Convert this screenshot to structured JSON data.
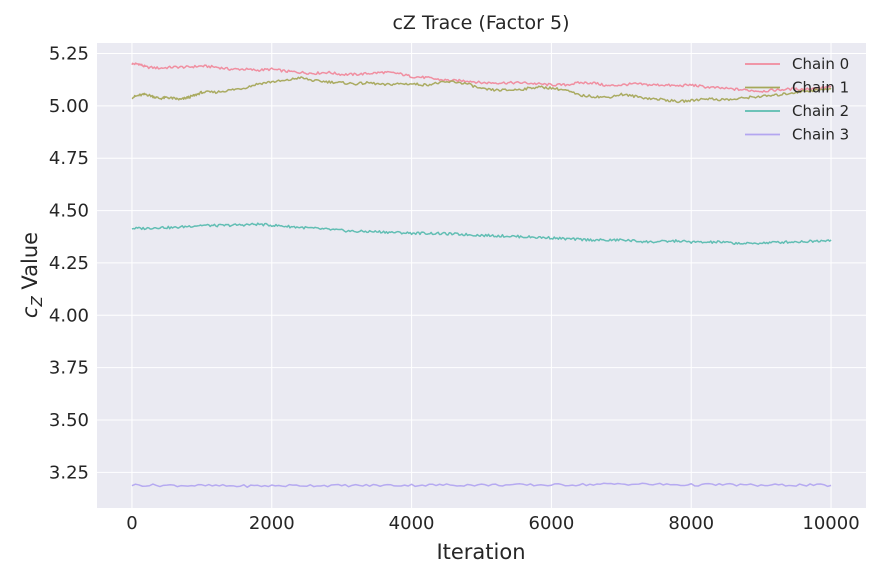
{
  "chart_data": {
    "type": "line",
    "title": "cZ Trace (Factor 5)",
    "xlabel": "Iteration",
    "ylabel_symbol": "c",
    "ylabel_subscript": "Z",
    "ylabel_text": " Value",
    "xlim": [
      -500,
      10500
    ],
    "ylim": [
      3.08,
      5.3
    ],
    "xticks": [
      0,
      2000,
      4000,
      6000,
      8000,
      10000
    ],
    "yticks": [
      3.25,
      3.5,
      3.75,
      4.0,
      4.25,
      4.5,
      4.75,
      5.0,
      5.25
    ],
    "grid": true,
    "legend_position": "top-right",
    "background_color": "#eaeaf2",
    "series": [
      {
        "name": "Chain 0",
        "color": "#f08a9c",
        "x": [
          0,
          100,
          200,
          400,
          600,
          800,
          1000,
          1200,
          1400,
          1600,
          1800,
          2000,
          2200,
          2400,
          2600,
          2800,
          3000,
          3200,
          3400,
          3600,
          3800,
          4000,
          4200,
          4400,
          4600,
          4800,
          5000,
          5200,
          5400,
          5600,
          5800,
          6000,
          6200,
          6400,
          6600,
          6800,
          7000,
          7200,
          7400,
          7600,
          7800,
          8000,
          8200,
          8400,
          8600,
          8800,
          9000,
          9200,
          9400,
          9600,
          9800,
          10000
        ],
        "values": [
          5.2,
          5.2,
          5.185,
          5.18,
          5.185,
          5.185,
          5.19,
          5.185,
          5.175,
          5.175,
          5.17,
          5.175,
          5.165,
          5.16,
          5.155,
          5.16,
          5.15,
          5.15,
          5.155,
          5.16,
          5.155,
          5.14,
          5.135,
          5.125,
          5.12,
          5.12,
          5.11,
          5.11,
          5.11,
          5.11,
          5.105,
          5.1,
          5.1,
          5.11,
          5.11,
          5.095,
          5.1,
          5.105,
          5.1,
          5.1,
          5.095,
          5.1,
          5.09,
          5.085,
          5.08,
          5.075,
          5.07,
          5.075,
          5.08,
          5.08,
          5.085,
          5.09
        ]
      },
      {
        "name": "Chain 1",
        "color": "#a6a85a",
        "x": [
          0,
          100,
          200,
          300,
          400,
          500,
          600,
          700,
          800,
          900,
          1000,
          1200,
          1400,
          1600,
          1800,
          2000,
          2200,
          2400,
          2600,
          2800,
          3000,
          3200,
          3400,
          3600,
          3800,
          4000,
          4200,
          4400,
          4600,
          4800,
          5000,
          5200,
          5400,
          5600,
          5800,
          6000,
          6200,
          6400,
          6600,
          6800,
          7000,
          7200,
          7400,
          7600,
          7800,
          8000,
          8200,
          8400,
          8600,
          8800,
          9000,
          9200,
          9400,
          9600,
          9800,
          10000
        ],
        "values": [
          5.04,
          5.05,
          5.055,
          5.045,
          5.035,
          5.04,
          5.035,
          5.03,
          5.04,
          5.05,
          5.065,
          5.065,
          5.075,
          5.085,
          5.105,
          5.115,
          5.12,
          5.135,
          5.12,
          5.115,
          5.11,
          5.105,
          5.11,
          5.1,
          5.105,
          5.105,
          5.1,
          5.11,
          5.115,
          5.105,
          5.08,
          5.075,
          5.075,
          5.08,
          5.09,
          5.085,
          5.075,
          5.05,
          5.045,
          5.04,
          5.055,
          5.045,
          5.035,
          5.03,
          5.02,
          5.025,
          5.035,
          5.03,
          5.03,
          5.04,
          5.045,
          5.05,
          5.06,
          5.07,
          5.075,
          5.08
        ]
      },
      {
        "name": "Chain 2",
        "color": "#5bbcb0",
        "x": [
          0,
          200,
          400,
          600,
          800,
          1000,
          1200,
          1400,
          1600,
          1800,
          2000,
          2200,
          2400,
          2600,
          2800,
          3000,
          3200,
          3400,
          3600,
          3800,
          4000,
          4200,
          4400,
          4600,
          4800,
          5000,
          5200,
          5400,
          5600,
          5800,
          6000,
          6200,
          6400,
          6600,
          6800,
          7000,
          7200,
          7400,
          7600,
          7800,
          8000,
          8200,
          8400,
          8600,
          8800,
          9000,
          9200,
          9400,
          9600,
          9800,
          10000
        ],
        "values": [
          4.415,
          4.415,
          4.42,
          4.418,
          4.425,
          4.43,
          4.428,
          4.43,
          4.432,
          4.435,
          4.43,
          4.425,
          4.42,
          4.415,
          4.41,
          4.405,
          4.4,
          4.4,
          4.398,
          4.395,
          4.392,
          4.392,
          4.39,
          4.388,
          4.385,
          4.382,
          4.38,
          4.378,
          4.375,
          4.372,
          4.37,
          4.365,
          4.362,
          4.36,
          4.358,
          4.36,
          4.355,
          4.35,
          4.352,
          4.355,
          4.35,
          4.348,
          4.35,
          4.345,
          4.342,
          4.345,
          4.348,
          4.35,
          4.352,
          4.355,
          4.36
        ]
      },
      {
        "name": "Chain 3",
        "color": "#b3a6f0",
        "x": [
          0,
          500,
          1000,
          1500,
          2000,
          2500,
          3000,
          3500,
          4000,
          4500,
          5000,
          5500,
          6000,
          6500,
          7000,
          7500,
          8000,
          8500,
          9000,
          9500,
          10000
        ],
        "values": [
          3.19,
          3.188,
          3.187,
          3.185,
          3.186,
          3.188,
          3.187,
          3.188,
          3.189,
          3.19,
          3.19,
          3.19,
          3.19,
          3.192,
          3.195,
          3.193,
          3.19,
          3.192,
          3.188,
          3.19,
          3.188
        ]
      }
    ]
  }
}
